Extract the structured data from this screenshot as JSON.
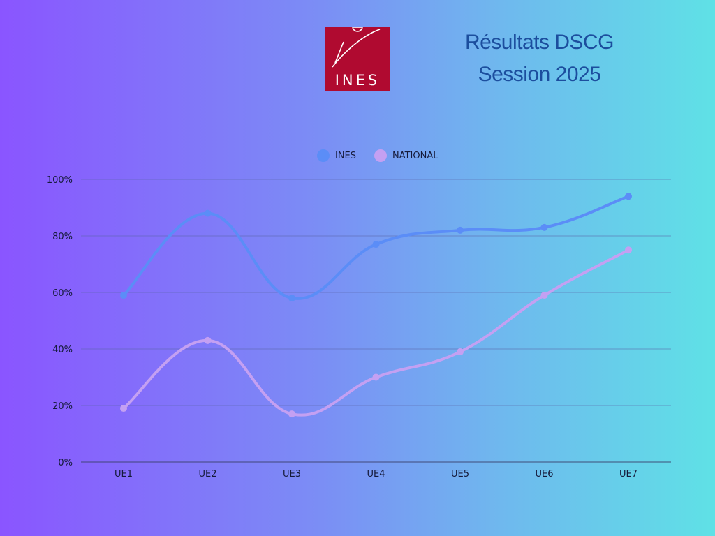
{
  "header": {
    "title_line1": "Résultats DSCG",
    "title_line2": "Session 2025"
  },
  "logo": {
    "text": "INES",
    "color": "#b00a30"
  },
  "legend": {
    "placement": "top-center"
  },
  "chart_data": {
    "type": "line",
    "categories": [
      "UE1",
      "UE2",
      "UE3",
      "UE4",
      "UE5",
      "UE6",
      "UE7"
    ],
    "series": [
      {
        "name": "INES",
        "values": [
          59,
          88,
          58,
          77,
          82,
          83,
          94
        ],
        "color": "#5b8df7"
      },
      {
        "name": "NATIONAL",
        "values": [
          19,
          43,
          17,
          30,
          39,
          59,
          75
        ],
        "color": "#c4a0f2"
      }
    ],
    "ylim": [
      0,
      100
    ],
    "yticks": [
      0,
      20,
      40,
      60,
      80,
      100
    ],
    "ytick_labels": [
      "0%",
      "20%",
      "40%",
      "60%",
      "80%",
      "100%"
    ],
    "grid": true,
    "smooth": true
  }
}
